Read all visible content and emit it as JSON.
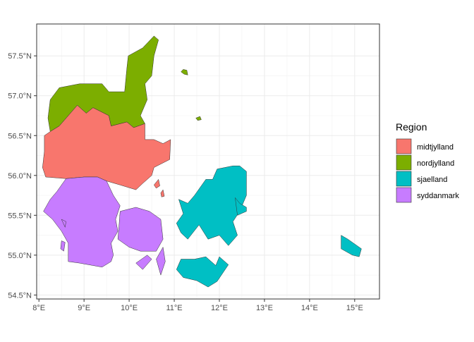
{
  "chart_data": {
    "type": "map",
    "title": "",
    "xlabel": "",
    "ylabel": "",
    "xlim": [
      7.95,
      15.55
    ],
    "ylim": [
      54.45,
      57.9
    ],
    "x_ticks": [
      {
        "value": 8,
        "label": "8°E"
      },
      {
        "value": 9,
        "label": "9°E"
      },
      {
        "value": 10,
        "label": "10°E"
      },
      {
        "value": 11,
        "label": "11°E"
      },
      {
        "value": 12,
        "label": "12°E"
      },
      {
        "value": 13,
        "label": "13°E"
      },
      {
        "value": 14,
        "label": "14°E"
      },
      {
        "value": 15,
        "label": "15°E"
      }
    ],
    "y_ticks": [
      {
        "value": 54.5,
        "label": "54.5°N"
      },
      {
        "value": 55.0,
        "label": "55.0°N"
      },
      {
        "value": 55.5,
        "label": "55.5°N"
      },
      {
        "value": 56.0,
        "label": "56.0°N"
      },
      {
        "value": 56.5,
        "label": "56.5°N"
      },
      {
        "value": 57.0,
        "label": "57.0°N"
      },
      {
        "value": 57.5,
        "label": "57.5°N"
      }
    ],
    "grid": true,
    "legend": {
      "title": "Region",
      "position": "right",
      "entries": [
        {
          "name": "midtjylland",
          "color": "#F8766D"
        },
        {
          "name": "nordjylland",
          "color": "#7CAE00"
        },
        {
          "name": "sjaelland",
          "color": "#00BFC4"
        },
        {
          "name": "syddanmark",
          "color": "#C77CFF"
        }
      ]
    },
    "regions": [
      {
        "name": "nordjylland",
        "color": "#7CAE00",
        "polygons": [
          [
            [
              8.2,
              56.72
            ],
            [
              8.25,
              56.95
            ],
            [
              8.45,
              57.1
            ],
            [
              8.9,
              57.15
            ],
            [
              9.4,
              57.15
            ],
            [
              9.55,
              57.05
            ],
            [
              9.9,
              57.05
            ],
            [
              9.95,
              57.35
            ],
            [
              9.98,
              57.5
            ],
            [
              10.3,
              57.6
            ],
            [
              10.55,
              57.75
            ],
            [
              10.65,
              57.7
            ],
            [
              10.55,
              57.5
            ],
            [
              10.5,
              57.25
            ],
            [
              10.35,
              57.15
            ],
            [
              10.4,
              56.95
            ],
            [
              10.25,
              56.75
            ],
            [
              10.35,
              56.65
            ],
            [
              10.1,
              56.6
            ],
            [
              9.95,
              56.67
            ],
            [
              9.6,
              56.62
            ],
            [
              9.55,
              56.75
            ],
            [
              9.2,
              56.85
            ],
            [
              9.05,
              56.78
            ],
            [
              8.85,
              56.88
            ],
            [
              8.65,
              56.75
            ],
            [
              8.45,
              56.62
            ],
            [
              8.25,
              56.55
            ]
          ],
          [
            [
              11.15,
              57.3
            ],
            [
              11.2,
              57.33
            ],
            [
              11.28,
              57.32
            ],
            [
              11.3,
              57.26
            ],
            [
              11.22,
              57.27
            ]
          ],
          [
            [
              11.48,
              56.72
            ],
            [
              11.57,
              56.74
            ],
            [
              11.6,
              56.7
            ],
            [
              11.52,
              56.69
            ]
          ]
        ]
      },
      {
        "name": "midtjylland",
        "color": "#F8766D",
        "polygons": [
          [
            [
              8.25,
              56.55
            ],
            [
              8.45,
              56.62
            ],
            [
              8.65,
              56.75
            ],
            [
              8.85,
              56.88
            ],
            [
              9.05,
              56.78
            ],
            [
              9.2,
              56.85
            ],
            [
              9.55,
              56.75
            ],
            [
              9.6,
              56.62
            ],
            [
              9.95,
              56.67
            ],
            [
              10.1,
              56.6
            ],
            [
              10.35,
              56.65
            ],
            [
              10.35,
              56.45
            ],
            [
              10.55,
              56.45
            ],
            [
              10.75,
              56.4
            ],
            [
              10.92,
              56.45
            ],
            [
              10.9,
              56.2
            ],
            [
              10.55,
              56.1
            ],
            [
              10.5,
              56.0
            ],
            [
              10.3,
              55.9
            ],
            [
              10.15,
              55.82
            ],
            [
              9.8,
              55.88
            ],
            [
              9.5,
              55.93
            ],
            [
              9.3,
              55.98
            ],
            [
              9.0,
              55.98
            ],
            [
              8.6,
              55.96
            ],
            [
              8.15,
              55.98
            ],
            [
              8.08,
              56.1
            ],
            [
              8.12,
              56.3
            ],
            [
              8.12,
              56.5
            ]
          ],
          [
            [
              10.55,
              55.88
            ],
            [
              10.65,
              55.95
            ],
            [
              10.68,
              55.87
            ],
            [
              10.6,
              55.84
            ]
          ],
          [
            [
              10.7,
              55.78
            ],
            [
              10.75,
              55.82
            ],
            [
              10.78,
              55.74
            ],
            [
              10.72,
              55.73
            ]
          ]
        ]
      },
      {
        "name": "sjaelland",
        "color": "#00BFC4",
        "polygons": [
          [
            [
              11.1,
              55.7
            ],
            [
              11.3,
              55.65
            ],
            [
              11.45,
              55.75
            ],
            [
              11.7,
              55.95
            ],
            [
              11.85,
              55.95
            ],
            [
              11.95,
              56.08
            ],
            [
              12.3,
              56.12
            ],
            [
              12.45,
              56.12
            ],
            [
              12.6,
              56.05
            ],
            [
              12.6,
              55.75
            ],
            [
              12.45,
              55.55
            ],
            [
              12.3,
              55.42
            ],
            [
              12.4,
              55.25
            ],
            [
              12.2,
              55.12
            ],
            [
              12.0,
              55.25
            ],
            [
              11.75,
              55.2
            ],
            [
              11.55,
              55.38
            ],
            [
              11.3,
              55.2
            ],
            [
              11.15,
              55.28
            ],
            [
              11.05,
              55.4
            ],
            [
              11.2,
              55.52
            ]
          ],
          [
            [
              11.15,
              54.95
            ],
            [
              11.45,
              54.95
            ],
            [
              11.7,
              54.98
            ],
            [
              11.92,
              54.87
            ],
            [
              12.0,
              54.98
            ],
            [
              12.2,
              54.88
            ],
            [
              11.95,
              54.67
            ],
            [
              11.75,
              54.6
            ],
            [
              11.5,
              54.68
            ],
            [
              11.2,
              54.72
            ],
            [
              11.05,
              54.82
            ]
          ],
          [
            [
              14.7,
              55.25
            ],
            [
              14.85,
              55.2
            ],
            [
              15.15,
              55.08
            ],
            [
              15.1,
              54.98
            ],
            [
              14.95,
              55.0
            ],
            [
              14.7,
              55.08
            ]
          ],
          [
            [
              12.35,
              55.72
            ],
            [
              12.45,
              55.65
            ],
            [
              12.6,
              55.6
            ],
            [
              12.6,
              55.55
            ],
            [
              12.4,
              55.5
            ]
          ]
        ]
      },
      {
        "name": "syddanmark",
        "color": "#C77CFF",
        "polygons": [
          [
            [
              8.1,
              55.55
            ],
            [
              8.25,
              55.7
            ],
            [
              8.4,
              55.8
            ],
            [
              8.6,
              55.96
            ],
            [
              9.0,
              55.98
            ],
            [
              9.3,
              55.98
            ],
            [
              9.5,
              55.93
            ],
            [
              9.65,
              55.75
            ],
            [
              9.8,
              55.62
            ],
            [
              9.7,
              55.45
            ],
            [
              9.75,
              55.3
            ],
            [
              9.6,
              55.15
            ],
            [
              9.65,
              55.0
            ],
            [
              9.6,
              54.92
            ],
            [
              9.4,
              54.85
            ],
            [
              8.9,
              54.9
            ],
            [
              8.65,
              54.92
            ],
            [
              8.65,
              55.15
            ],
            [
              8.5,
              55.3
            ],
            [
              8.3,
              55.45
            ]
          ],
          [
            [
              9.8,
              55.55
            ],
            [
              10.15,
              55.6
            ],
            [
              10.45,
              55.55
            ],
            [
              10.7,
              55.45
            ],
            [
              10.75,
              55.2
            ],
            [
              10.6,
              55.05
            ],
            [
              10.25,
              55.05
            ],
            [
              10.0,
              55.1
            ],
            [
              9.75,
              55.2
            ],
            [
              9.78,
              55.4
            ]
          ],
          [
            [
              10.15,
              54.9
            ],
            [
              10.4,
              55.0
            ],
            [
              10.5,
              54.95
            ],
            [
              10.3,
              54.82
            ]
          ],
          [
            [
              10.6,
              54.95
            ],
            [
              10.75,
              55.1
            ],
            [
              10.8,
              54.92
            ],
            [
              10.7,
              54.75
            ]
          ],
          [
            [
              8.5,
              55.18
            ],
            [
              8.58,
              55.16
            ],
            [
              8.55,
              55.05
            ],
            [
              8.48,
              55.08
            ]
          ],
          [
            [
              8.5,
              55.45
            ],
            [
              8.6,
              55.42
            ],
            [
              8.58,
              55.35
            ]
          ]
        ]
      }
    ]
  }
}
